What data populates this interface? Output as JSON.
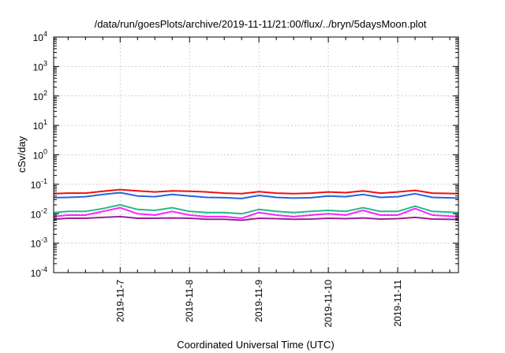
{
  "chart_data": {
    "type": "line",
    "title": "/data/run/goesPlots/archive/2019-11-11/21:00/flux/../bryn/5daysMoon.plot",
    "xlabel": "Coordinated Universal Time (UTC)",
    "ylabel": "cSv/day",
    "yscale": "log",
    "ylim": [
      0.0001,
      10000
    ],
    "xlim": [
      "2019-11-06T01:00",
      "2019-11-11T21:00"
    ],
    "x_ticks": [
      "2019-11-7",
      "2019-11-8",
      "2019-11-9",
      "2019-11-10",
      "2019-11-11"
    ],
    "y_ticks": [
      {
        "mant": "10",
        "exp": "-4"
      },
      {
        "mant": "10",
        "exp": "-3"
      },
      {
        "mant": "10",
        "exp": "-2"
      },
      {
        "mant": "10",
        "exp": "-1"
      },
      {
        "mant": "10",
        "exp": "0"
      },
      {
        "mant": "10",
        "exp": "1"
      },
      {
        "mant": "10",
        "exp": "2"
      },
      {
        "mant": "10",
        "exp": "3"
      },
      {
        "mant": "10",
        "exp": "4"
      }
    ],
    "grid": true,
    "legend": "none",
    "series": [
      {
        "color": "#ee1111",
        "x": [
          "2019-11-06T01:00",
          "2019-11-06T06:00",
          "2019-11-06T12:00",
          "2019-11-06T18:00",
          "2019-11-07T00:00",
          "2019-11-07T06:00",
          "2019-11-07T12:00",
          "2019-11-07T18:00",
          "2019-11-08T00:00",
          "2019-11-08T06:00",
          "2019-11-08T12:00",
          "2019-11-08T18:00",
          "2019-11-09T00:00",
          "2019-11-09T06:00",
          "2019-11-09T12:00",
          "2019-11-09T18:00",
          "2019-11-10T00:00",
          "2019-11-10T06:00",
          "2019-11-10T12:00",
          "2019-11-10T18:00",
          "2019-11-11T00:00",
          "2019-11-11T06:00",
          "2019-11-11T12:00",
          "2019-11-11T21:00"
        ],
        "y": [
          0.048,
          0.05,
          0.05,
          0.058,
          0.066,
          0.06,
          0.055,
          0.06,
          0.058,
          0.055,
          0.05,
          0.048,
          0.056,
          0.05,
          0.048,
          0.05,
          0.055,
          0.052,
          0.06,
          0.05,
          0.055,
          0.062,
          0.05,
          0.048
        ]
      },
      {
        "color": "#2266dd",
        "x": [
          "2019-11-06T01:00",
          "2019-11-06T06:00",
          "2019-11-06T12:00",
          "2019-11-06T18:00",
          "2019-11-07T00:00",
          "2019-11-07T06:00",
          "2019-11-07T12:00",
          "2019-11-07T18:00",
          "2019-11-08T00:00",
          "2019-11-08T06:00",
          "2019-11-08T12:00",
          "2019-11-08T18:00",
          "2019-11-09T00:00",
          "2019-11-09T06:00",
          "2019-11-09T12:00",
          "2019-11-09T18:00",
          "2019-11-10T00:00",
          "2019-11-10T06:00",
          "2019-11-10T12:00",
          "2019-11-10T18:00",
          "2019-11-11T00:00",
          "2019-11-11T06:00",
          "2019-11-11T12:00",
          "2019-11-11T21:00"
        ],
        "y": [
          0.035,
          0.036,
          0.038,
          0.045,
          0.052,
          0.04,
          0.038,
          0.045,
          0.04,
          0.036,
          0.035,
          0.033,
          0.042,
          0.036,
          0.034,
          0.035,
          0.04,
          0.038,
          0.045,
          0.036,
          0.038,
          0.048,
          0.036,
          0.034
        ]
      },
      {
        "color": "#22bb88",
        "x": [
          "2019-11-06T01:00",
          "2019-11-06T06:00",
          "2019-11-06T12:00",
          "2019-11-06T18:00",
          "2019-11-07T00:00",
          "2019-11-07T06:00",
          "2019-11-07T12:00",
          "2019-11-07T18:00",
          "2019-11-08T00:00",
          "2019-11-08T06:00",
          "2019-11-08T12:00",
          "2019-11-08T18:00",
          "2019-11-09T00:00",
          "2019-11-09T06:00",
          "2019-11-09T12:00",
          "2019-11-09T18:00",
          "2019-11-10T00:00",
          "2019-11-10T06:00",
          "2019-11-10T12:00",
          "2019-11-10T18:00",
          "2019-11-11T00:00",
          "2019-11-11T06:00",
          "2019-11-11T12:00",
          "2019-11-11T21:00"
        ],
        "y": [
          0.011,
          0.012,
          0.012,
          0.015,
          0.02,
          0.014,
          0.013,
          0.016,
          0.012,
          0.011,
          0.011,
          0.01,
          0.014,
          0.012,
          0.011,
          0.012,
          0.013,
          0.012,
          0.016,
          0.012,
          0.012,
          0.018,
          0.012,
          0.011
        ]
      },
      {
        "color": "#ff22ff",
        "x": [
          "2019-11-06T01:00",
          "2019-11-06T06:00",
          "2019-11-06T12:00",
          "2019-11-06T18:00",
          "2019-11-07T00:00",
          "2019-11-07T06:00",
          "2019-11-07T12:00",
          "2019-11-07T18:00",
          "2019-11-08T00:00",
          "2019-11-08T06:00",
          "2019-11-08T12:00",
          "2019-11-08T18:00",
          "2019-11-09T00:00",
          "2019-11-09T06:00",
          "2019-11-09T12:00",
          "2019-11-09T18:00",
          "2019-11-10T00:00",
          "2019-11-10T06:00",
          "2019-11-10T12:00",
          "2019-11-10T18:00",
          "2019-11-11T00:00",
          "2019-11-11T06:00",
          "2019-11-11T12:00",
          "2019-11-11T21:00"
        ],
        "y": [
          0.008,
          0.009,
          0.009,
          0.012,
          0.016,
          0.01,
          0.009,
          0.012,
          0.009,
          0.008,
          0.008,
          0.007,
          0.011,
          0.009,
          0.008,
          0.009,
          0.01,
          0.009,
          0.013,
          0.009,
          0.009,
          0.015,
          0.009,
          0.008
        ]
      },
      {
        "color": "#992299",
        "x": [
          "2019-11-06T01:00",
          "2019-11-06T06:00",
          "2019-11-06T12:00",
          "2019-11-06T18:00",
          "2019-11-07T00:00",
          "2019-11-07T06:00",
          "2019-11-07T12:00",
          "2019-11-07T18:00",
          "2019-11-08T00:00",
          "2019-11-08T06:00",
          "2019-11-08T12:00",
          "2019-11-08T18:00",
          "2019-11-09T00:00",
          "2019-11-09T06:00",
          "2019-11-09T12:00",
          "2019-11-09T18:00",
          "2019-11-10T00:00",
          "2019-11-10T06:00",
          "2019-11-10T12:00",
          "2019-11-10T18:00",
          "2019-11-11T00:00",
          "2019-11-11T06:00",
          "2019-11-11T12:00",
          "2019-11-11T21:00"
        ],
        "y": [
          0.0065,
          0.007,
          0.007,
          0.0075,
          0.008,
          0.007,
          0.007,
          0.0072,
          0.007,
          0.0065,
          0.0065,
          0.006,
          0.007,
          0.0068,
          0.0065,
          0.0066,
          0.007,
          0.0068,
          0.0072,
          0.0066,
          0.0068,
          0.0075,
          0.0066,
          0.0064
        ]
      }
    ]
  }
}
